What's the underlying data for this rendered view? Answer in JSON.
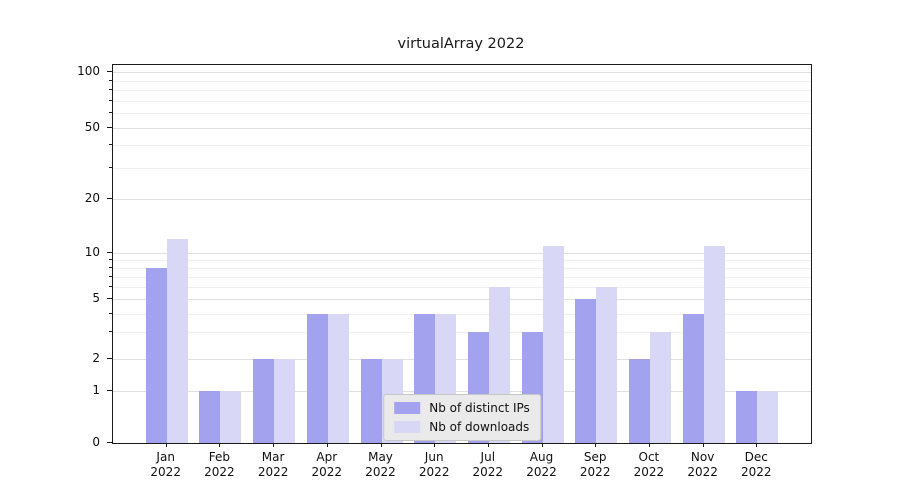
{
  "chart_data": {
    "type": "bar",
    "title": "virtualArray 2022",
    "categories": [
      "Jan 2022",
      "Feb 2022",
      "Mar 2022",
      "Apr 2022",
      "May 2022",
      "Jun 2022",
      "Jul 2022",
      "Aug 2022",
      "Sep 2022",
      "Oct 2022",
      "Nov 2022",
      "Dec 2022"
    ],
    "series": [
      {
        "name": "Nb of distinct IPs",
        "color": "#a2a2ee",
        "values": [
          8,
          1,
          2,
          4,
          2,
          4,
          3,
          3,
          5,
          2,
          4,
          1
        ]
      },
      {
        "name": "Nb of downloads",
        "color": "#d8d8f6",
        "values": [
          12,
          1,
          2,
          4,
          2,
          4,
          6,
          11,
          6,
          3,
          11,
          1
        ]
      }
    ],
    "yscale": "symlog",
    "ylim": [
      0,
      110
    ],
    "yticks": [
      0,
      1,
      2,
      5,
      10,
      20,
      50,
      100
    ],
    "minor_yticks": [
      3,
      4,
      6,
      7,
      8,
      9,
      30,
      40,
      60,
      70,
      80,
      90
    ],
    "grid": true,
    "legend_position": "lower center",
    "xlabel": "",
    "ylabel": ""
  }
}
